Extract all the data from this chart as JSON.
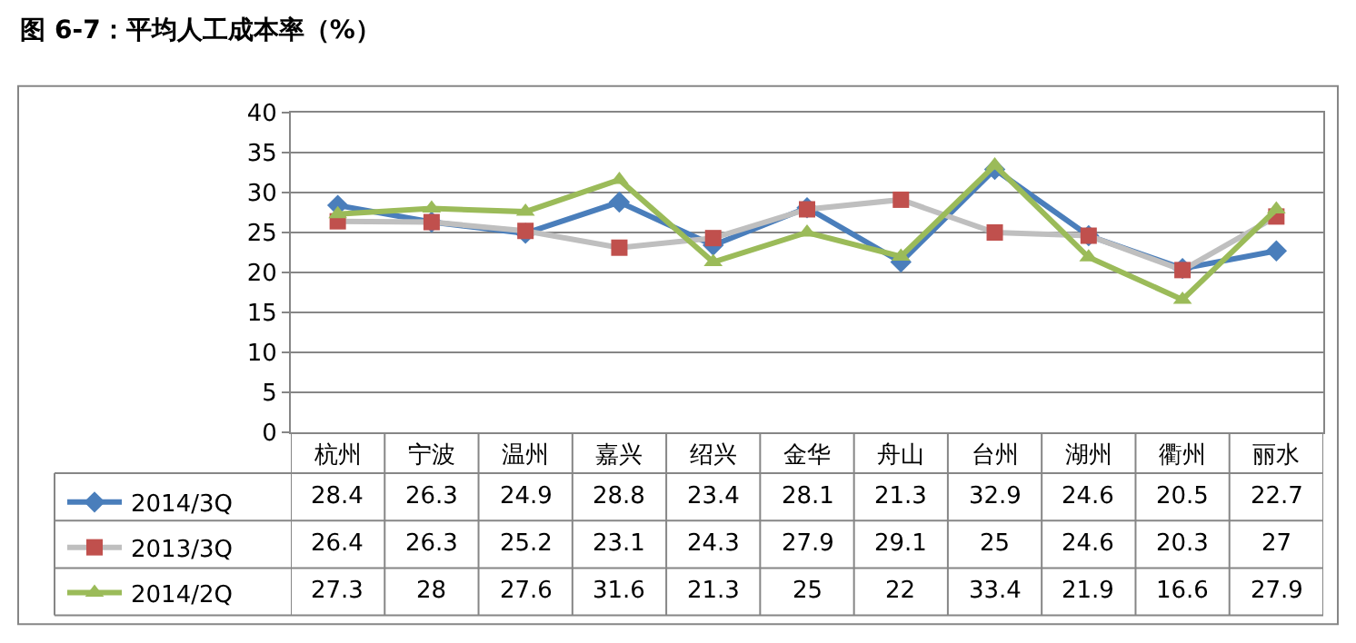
{
  "chart_data": {
    "type": "line",
    "title": "图 6-7：平均人工成本率（%）",
    "categories": [
      "杭州",
      "宁波",
      "温州",
      "嘉兴",
      "绍兴",
      "金华",
      "舟山",
      "台州",
      "湖州",
      "衢州",
      "丽水"
    ],
    "series": [
      {
        "name": "2014/3Q",
        "color": "#4a7ebb",
        "marker": "diamond",
        "values": [
          28.4,
          26.3,
          24.9,
          28.8,
          23.4,
          28.1,
          21.3,
          32.9,
          24.6,
          20.5,
          22.7
        ]
      },
      {
        "name": "2013/3Q",
        "color": "#bfbfbf",
        "colors": [
          "#c0504d",
          "#c0504d",
          "#c0504d",
          "#c0504d",
          "#c0504d",
          "#c0504d",
          "#c0504d",
          "#c0504d",
          "#c0504d",
          "#c0504d",
          "#c0504d"
        ],
        "marker": "square",
        "values": [
          26.4,
          26.3,
          25.2,
          23.1,
          24.3,
          27.9,
          29.1,
          25,
          24.6,
          20.3,
          27
        ]
      },
      {
        "name": "2014/2Q",
        "color": "#9bbb59",
        "marker": "triangle",
        "values": [
          27.3,
          28,
          27.6,
          31.6,
          21.3,
          25,
          22,
          33.4,
          21.9,
          16.6,
          27.9
        ]
      }
    ],
    "ylim": [
      0,
      40
    ],
    "yticks": [
      0,
      5,
      10,
      15,
      20,
      25,
      30,
      35,
      40
    ],
    "grid": "y",
    "legend": "bottom left",
    "data_labels": true
  }
}
